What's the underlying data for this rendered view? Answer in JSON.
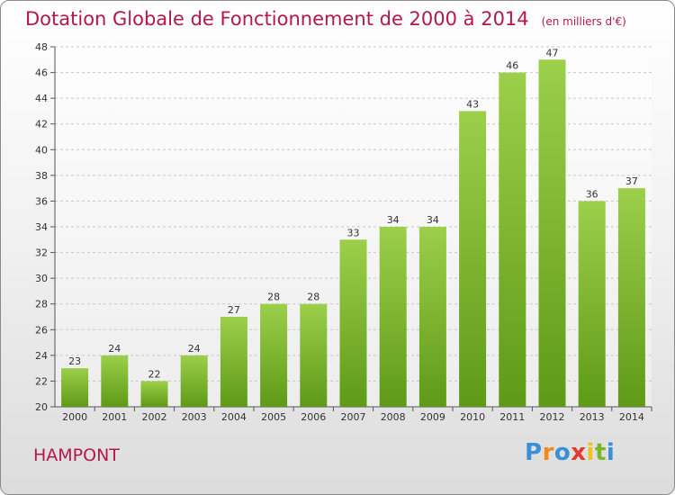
{
  "header": {
    "title": "Dotation Globale de Fonctionnement de 2000 à 2014",
    "subtitle": "(en milliers d'€)"
  },
  "footer": {
    "place": "HAMPONT",
    "logo": "Proxiti"
  },
  "colors": {
    "title": "#b5174b",
    "bar_top": "#9ccf4a",
    "bar_bottom": "#5e9a17",
    "grid": "#c8c8c8"
  },
  "chart_data": {
    "type": "bar",
    "title": "Dotation Globale de Fonctionnement de 2000 à 2014",
    "subtitle": "(en milliers d'€)",
    "categories": [
      "2000",
      "2001",
      "2002",
      "2003",
      "2004",
      "2005",
      "2006",
      "2007",
      "2008",
      "2009",
      "2010",
      "2011",
      "2012",
      "2013",
      "2014"
    ],
    "values": [
      23,
      24,
      22,
      24,
      27,
      28,
      28,
      33,
      34,
      34,
      43,
      46,
      47,
      36,
      37
    ],
    "ylim": [
      20,
      48
    ],
    "yticks": [
      20,
      22,
      24,
      26,
      28,
      30,
      32,
      34,
      36,
      38,
      40,
      42,
      44,
      46,
      48
    ],
    "grid": true,
    "xlabel": "",
    "ylabel": ""
  }
}
